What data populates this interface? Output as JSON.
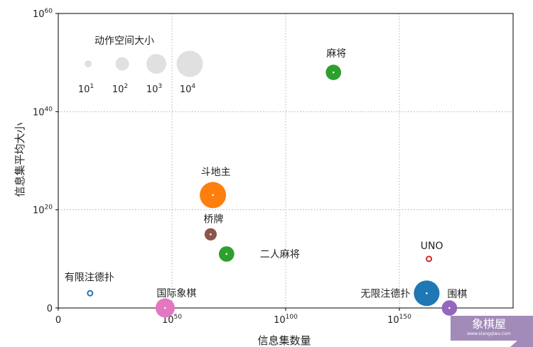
{
  "chart_data": {
    "type": "scatter",
    "xlabel": "信息集数量",
    "ylabel": "信息集平均大小",
    "x_scale": "log",
    "y_scale": "log",
    "xlim_exp": [
      0,
      200
    ],
    "ylim_exp": [
      0,
      60
    ],
    "grid": true,
    "x_ticks": [
      {
        "base": "0",
        "exp": ""
      },
      {
        "base": "10",
        "exp": "50"
      },
      {
        "base": "10",
        "exp": "100"
      },
      {
        "base": "10",
        "exp": "150"
      }
    ],
    "y_ticks": [
      {
        "base": "0",
        "exp": ""
      },
      {
        "base": "10",
        "exp": "20"
      },
      {
        "base": "10",
        "exp": "40"
      },
      {
        "base": "10",
        "exp": "60"
      }
    ],
    "size_legend": {
      "title": "动作空间大小",
      "items": [
        {
          "base": "10",
          "exp": "1",
          "action_exp": 1
        },
        {
          "base": "10",
          "exp": "2",
          "action_exp": 2
        },
        {
          "base": "10",
          "exp": "3",
          "action_exp": 3
        },
        {
          "base": "10",
          "exp": "4",
          "action_exp": 4
        }
      ]
    },
    "points": [
      {
        "name": "有限注德扑",
        "x_exp": 14,
        "y_exp": 3,
        "action_exp": 1,
        "hollow": true,
        "color": "#1f77b4"
      },
      {
        "name": "国际象棋",
        "x_exp": 47,
        "y_exp": 0,
        "action_exp": 2.9,
        "hollow": false,
        "color": "#e377c2"
      },
      {
        "name": "斗地主",
        "x_exp": 68,
        "y_exp": 23,
        "action_exp": 4,
        "hollow": false,
        "color": "#ff7f0e"
      },
      {
        "name": "桥牌",
        "x_exp": 67,
        "y_exp": 15,
        "action_exp": 1.8,
        "hollow": false,
        "color": "#8c564b"
      },
      {
        "name": "二人麻将",
        "x_exp": 74,
        "y_exp": 11,
        "action_exp": 2.3,
        "hollow": false,
        "color": "#2ca02c"
      },
      {
        "name": "麻将",
        "x_exp": 121,
        "y_exp": 48,
        "action_exp": 2.3,
        "hollow": false,
        "color": "#2ca02c"
      },
      {
        "name": "UNO",
        "x_exp": 163,
        "y_exp": 10,
        "action_exp": 1,
        "hollow": true,
        "color": "#d62728"
      },
      {
        "name": "无限注德扑",
        "x_exp": 162,
        "y_exp": 3,
        "action_exp": 3.9,
        "hollow": false,
        "color": "#1f77b4"
      },
      {
        "name": "围棋",
        "x_exp": 172,
        "y_exp": 0,
        "action_exp": 2.3,
        "hollow": false,
        "color": "#9467bd"
      }
    ]
  },
  "watermark": {
    "text": "象棋屋",
    "sub": "www.xiangqiwu.com"
  },
  "colors": {
    "legend_bubble": "#e0e0e0",
    "grid": "#b0b0b0",
    "watermark_bg": "#9a80b3"
  }
}
